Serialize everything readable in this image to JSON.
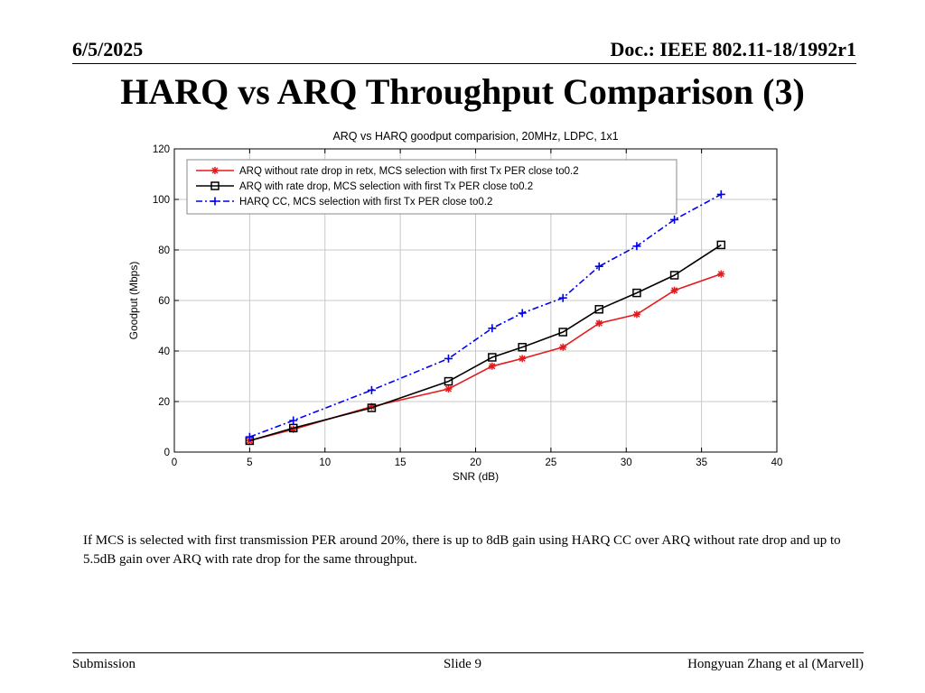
{
  "header": {
    "date": "6/5/2025",
    "doc_id": "Doc.: IEEE 802.11-18/1992r1"
  },
  "slide_title": "HARQ vs ARQ Throughput Comparison (3)",
  "body_text": "If MCS is selected with first transmission PER around 20%, there is up to 8dB gain using HARQ CC over ARQ without rate drop and up to 5.5dB gain over ARQ with rate drop for the same throughput.",
  "footer": {
    "left": "Submission",
    "center": "Slide 9",
    "right": "Hongyuan Zhang et al (Marvell)"
  },
  "chart_data": {
    "type": "line",
    "title": "ARQ vs HARQ goodput comparision, 20MHz, LDPC, 1x1",
    "xlabel": "SNR (dB)",
    "ylabel": "Goodput (Mbps)",
    "xlim": [
      0,
      40
    ],
    "ylim": [
      0,
      120
    ],
    "xticks": [
      0,
      5,
      10,
      15,
      20,
      25,
      30,
      35,
      40
    ],
    "yticks": [
      0,
      20,
      40,
      60,
      80,
      100,
      120
    ],
    "grid": true,
    "legend_position": "top-left",
    "series": [
      {
        "name": "ARQ without rate drop in retx, MCS selection with first Tx PER close to0.2",
        "color": "#e41a1c",
        "marker": "star",
        "linestyle": "solid",
        "x": [
          5,
          7.9,
          13.1,
          18.2,
          21.1,
          23.1,
          25.8,
          28.2,
          30.7,
          33.2,
          36.3
        ],
        "y": [
          4.5,
          9,
          18,
          25,
          34,
          37,
          41.5,
          51,
          54.5,
          64,
          70.5
        ]
      },
      {
        "name": "ARQ with rate drop, MCS selection with first Tx PER close to0.2",
        "color": "#000000",
        "marker": "square",
        "linestyle": "solid",
        "x": [
          5,
          7.9,
          13.1,
          18.2,
          21.1,
          23.1,
          25.8,
          28.2,
          30.7,
          33.2,
          36.3
        ],
        "y": [
          4.5,
          9.5,
          17.5,
          28,
          37.5,
          41.5,
          47.5,
          56.5,
          63,
          70,
          82
        ]
      },
      {
        "name": "HARQ CC, MCS selection with first Tx PER close to0.2",
        "color": "#0000ee",
        "marker": "plus",
        "linestyle": "dashdot",
        "x": [
          5,
          7.9,
          13.1,
          18.2,
          21.1,
          23.1,
          25.8,
          28.2,
          30.7,
          33.2,
          36.3
        ],
        "y": [
          6,
          12.5,
          24.5,
          37,
          49,
          55,
          61,
          73.5,
          81.5,
          92,
          102
        ]
      }
    ]
  }
}
